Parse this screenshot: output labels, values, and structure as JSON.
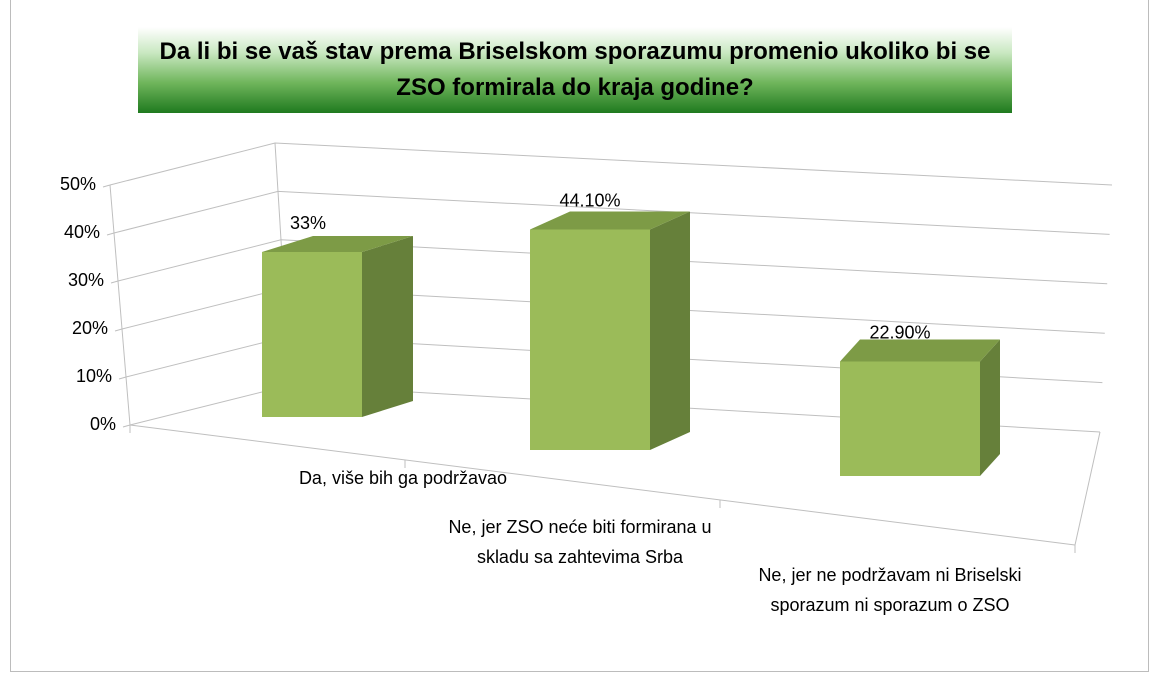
{
  "chart_data": {
    "type": "bar3d",
    "title": "Da li bi se vaš stav prema Briselskom sporazumu promenio ukoliko bi se ZSO formirala do kraja godine?",
    "categories": [
      "Da, više bih ga podržavao",
      "Ne, jer ZSO neće biti formirana u skladu sa zahtevima Srba",
      "Ne, jer ne podržavam ni Briselski sporazum ni sporazum o ZSO"
    ],
    "values": [
      33,
      44.1,
      22.9
    ],
    "value_labels": [
      "33%",
      "44.10%",
      "22.90%"
    ],
    "color": "#9bbb59",
    "ylim": [
      0,
      50
    ],
    "yticks": [
      {
        "value": 0,
        "label": "0%"
      },
      {
        "value": 10,
        "label": "10%"
      },
      {
        "value": 20,
        "label": "20%"
      },
      {
        "value": 30,
        "label": "30%"
      },
      {
        "value": 40,
        "label": "40%"
      },
      {
        "value": 50,
        "label": "50%"
      }
    ],
    "grid": true
  }
}
